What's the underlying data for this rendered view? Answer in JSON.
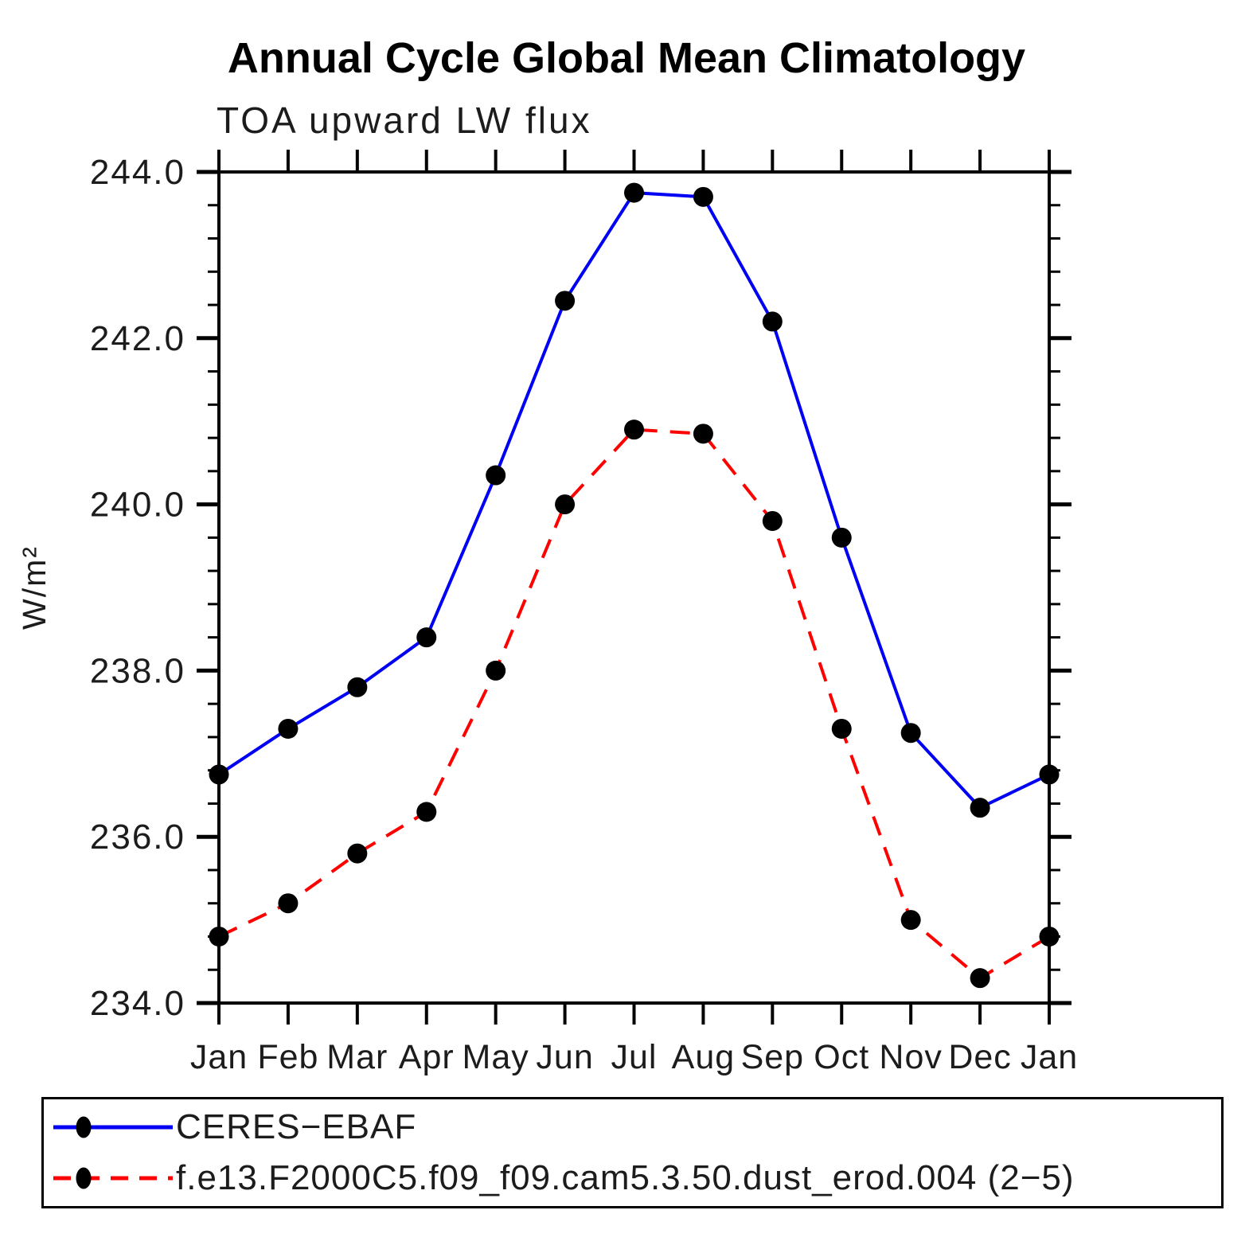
{
  "chart_data": {
    "type": "line",
    "title": "Annual Cycle Global Mean Climatology",
    "subtitle": "TOA upward LW flux",
    "ylabel": "W/m²",
    "xlabel": "",
    "categories": [
      "Jan",
      "Feb",
      "Mar",
      "Apr",
      "May",
      "Jun",
      "Jul",
      "Aug",
      "Sep",
      "Oct",
      "Nov",
      "Dec",
      "Jan"
    ],
    "ylim": [
      234.0,
      244.0
    ],
    "ytick_major_step": 2.0,
    "ytick_minor_step": 0.4,
    "ytick_labels": [
      "244.0",
      "242.0",
      "240.0",
      "238.0",
      "236.0",
      "234.0"
    ],
    "grid": false,
    "legend_position": "bottom",
    "marker_color": "#000000",
    "axis_color": "#000000",
    "series": [
      {
        "name": "CERES−EBAF",
        "color": "#0000f5",
        "style": "solid",
        "marker": "filled-circle",
        "values": [
          236.75,
          237.3,
          237.8,
          238.4,
          240.35,
          242.45,
          243.75,
          243.7,
          242.2,
          239.6,
          237.25,
          236.35,
          236.75
        ]
      },
      {
        "name": "f.e13.F2000C5.f09_f09.cam5.3.50.dust_erod.004 (2−5)",
        "color": "#ff0000",
        "style": "dashed",
        "marker": "filled-circle",
        "values": [
          234.8,
          235.2,
          235.8,
          236.3,
          238.0,
          240.0,
          240.9,
          240.85,
          239.8,
          237.3,
          235.0,
          234.3,
          234.8
        ]
      }
    ]
  }
}
